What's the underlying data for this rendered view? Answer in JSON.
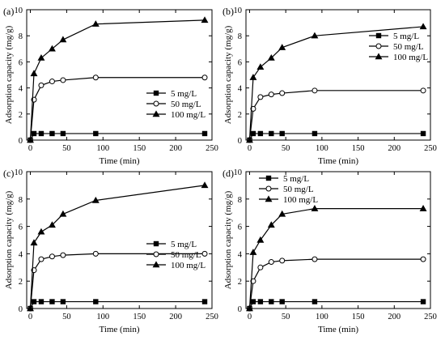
{
  "figure": {
    "panels": [
      {
        "panel_label": "(a)",
        "ylabel": "Adsorption capacity (mg/g)",
        "xlabel": "Time (min)",
        "xlim": [
          -5,
          250
        ],
        "ylim": [
          0,
          10
        ],
        "xticks": [
          0,
          50,
          100,
          150,
          200,
          250
        ],
        "yticks": [
          0,
          2,
          4,
          6,
          8,
          10
        ],
        "legend": [
          {
            "label": "5 mg/L",
            "marker": "square"
          },
          {
            "label": "50 mg/L",
            "marker": "circle-open"
          },
          {
            "label": "100 mg/L",
            "marker": "triangle"
          }
        ]
      },
      {
        "panel_label": "(b)",
        "ylabel": "Adsorption capacity (mg/g)",
        "xlabel": "Time (min)",
        "xlim": [
          -5,
          250
        ],
        "ylim": [
          0,
          10
        ],
        "xticks": [
          0,
          50,
          100,
          150,
          200,
          250
        ],
        "yticks": [
          0,
          2,
          4,
          6,
          8,
          10
        ],
        "legend": [
          {
            "label": "5 mg/L",
            "marker": "square"
          },
          {
            "label": "50 mg/L",
            "marker": "circle-open"
          },
          {
            "label": "100 mg/L",
            "marker": "triangle"
          }
        ]
      },
      {
        "panel_label": "(c)",
        "ylabel": "Adsorption capacity (mg/g)",
        "xlabel": "Time (min)",
        "xlim": [
          -5,
          250
        ],
        "ylim": [
          0,
          10
        ],
        "xticks": [
          0,
          50,
          100,
          150,
          200,
          250
        ],
        "yticks": [
          0,
          2,
          4,
          6,
          8,
          10
        ],
        "legend": [
          {
            "label": "5 mg/L",
            "marker": "square"
          },
          {
            "label": "50 mg/L",
            "marker": "circle-open"
          },
          {
            "label": "100 mg/L",
            "marker": "triangle"
          }
        ]
      },
      {
        "panel_label": "(d)",
        "ylabel": "Adsorption capacity (mg/g)",
        "xlabel": "Time (min)",
        "xlim": [
          -5,
          250
        ],
        "ylim": [
          0,
          10
        ],
        "xticks": [
          0,
          50,
          100,
          150,
          200,
          250
        ],
        "yticks": [
          0,
          2,
          4,
          6,
          8,
          10
        ],
        "legend": [
          {
            "label": "5 mg/L",
            "marker": "square"
          },
          {
            "label": "50 mg/L",
            "marker": "circle-open"
          },
          {
            "label": "100 mg/L",
            "marker": "triangle"
          }
        ]
      }
    ]
  },
  "chart_data": [
    {
      "type": "line",
      "title": "",
      "panel_label": "(a)",
      "xlabel": "Time (min)",
      "ylabel": "Adsorption capacity (mg/g)",
      "xlim": [
        -5,
        250
      ],
      "ylim": [
        0,
        10
      ],
      "grid": false,
      "legend_position": "bottom-right",
      "x": [
        0,
        5,
        15,
        30,
        45,
        90,
        240
      ],
      "series": [
        {
          "name": "5 mg/L",
          "marker": "square",
          "values": [
            0,
            0.5,
            0.5,
            0.5,
            0.5,
            0.5,
            0.5
          ]
        },
        {
          "name": "50 mg/L",
          "marker": "circle-open",
          "values": [
            0,
            3.1,
            4.2,
            4.5,
            4.6,
            4.8,
            4.8
          ]
        },
        {
          "name": "100 mg/L",
          "marker": "triangle",
          "values": [
            0,
            5.1,
            6.3,
            7.0,
            7.7,
            8.9,
            9.2
          ]
        }
      ]
    },
    {
      "type": "line",
      "title": "",
      "panel_label": "(b)",
      "xlabel": "Time (min)",
      "ylabel": "Adsorption capacity (mg/g)",
      "xlim": [
        -5,
        250
      ],
      "ylim": [
        0,
        10
      ],
      "grid": false,
      "legend_position": "top-right",
      "x": [
        0,
        5,
        15,
        30,
        45,
        90,
        240
      ],
      "series": [
        {
          "name": "5 mg/L",
          "marker": "square",
          "values": [
            0,
            0.5,
            0.5,
            0.5,
            0.5,
            0.5,
            0.5
          ]
        },
        {
          "name": "50 mg/L",
          "marker": "circle-open",
          "values": [
            0,
            2.4,
            3.3,
            3.5,
            3.6,
            3.8,
            3.8
          ]
        },
        {
          "name": "100 mg/L",
          "marker": "triangle",
          "values": [
            0,
            4.8,
            5.6,
            6.3,
            7.1,
            8.0,
            8.7
          ]
        }
      ]
    },
    {
      "type": "line",
      "title": "",
      "panel_label": "(c)",
      "xlabel": "Time (min)",
      "ylabel": "Adsorption capacity (mg/g)",
      "xlim": [
        -5,
        250
      ],
      "ylim": [
        0,
        10
      ],
      "grid": false,
      "legend_position": "center-right",
      "x": [
        0,
        5,
        15,
        30,
        45,
        90,
        240
      ],
      "series": [
        {
          "name": "5 mg/L",
          "marker": "square",
          "values": [
            0,
            0.5,
            0.5,
            0.5,
            0.5,
            0.5,
            0.5
          ]
        },
        {
          "name": "50 mg/L",
          "marker": "circle-open",
          "values": [
            0,
            2.8,
            3.6,
            3.8,
            3.9,
            4.0,
            4.0
          ]
        },
        {
          "name": "100 mg/L",
          "marker": "triangle",
          "values": [
            0,
            4.8,
            5.6,
            6.1,
            6.9,
            7.9,
            9.0
          ]
        }
      ]
    },
    {
      "type": "line",
      "title": "",
      "panel_label": "(d)",
      "xlabel": "Time (min)",
      "ylabel": "Adsorption capacity (mg/g)",
      "xlim": [
        -5,
        250
      ],
      "ylim": [
        0,
        10
      ],
      "grid": false,
      "legend_position": "top-left",
      "x": [
        0,
        5,
        15,
        30,
        45,
        90,
        240
      ],
      "series": [
        {
          "name": "5 mg/L",
          "marker": "square",
          "values": [
            0,
            0.5,
            0.5,
            0.5,
            0.5,
            0.5,
            0.5
          ]
        },
        {
          "name": "50 mg/L",
          "marker": "circle-open",
          "values": [
            0,
            2.0,
            3.0,
            3.4,
            3.5,
            3.6,
            3.6
          ]
        },
        {
          "name": "100 mg/L",
          "marker": "triangle",
          "values": [
            0,
            4.1,
            5.0,
            6.1,
            6.9,
            7.3,
            7.3
          ]
        }
      ]
    }
  ]
}
